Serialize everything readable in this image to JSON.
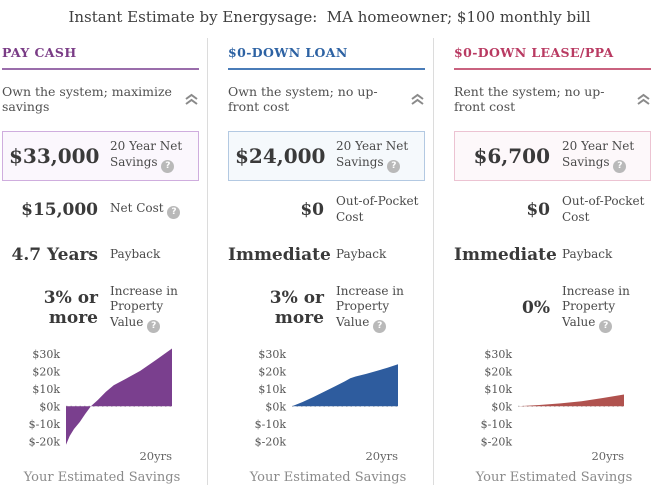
{
  "page_title": "Instant Estimate by Energysage:  MA homeowner; $100 monthly bill",
  "icons": {
    "help_glyph": "?",
    "chevron_meaning": "collapse-up"
  },
  "divider_color": "#dcdcdc",
  "columns": [
    {
      "header": "PAY CASH",
      "subtitle": "Own the system; maximize savings",
      "colors": {
        "accent": "#7a3c86",
        "underline": "#9a6dab",
        "box_border": "#cfadde",
        "box_bg": "#fbf7fd",
        "chart_fill": "#7a3f8e"
      },
      "highlight": {
        "value": "$33,000",
        "label": "20 Year Net Savings"
      },
      "metrics": [
        {
          "value": "$15,000",
          "label": "Net Cost"
        },
        {
          "value": "4.7 Years",
          "label": "Payback"
        },
        {
          "value": "3% or more",
          "label": "Increase in Property Value"
        }
      ],
      "chart_footer": "Your Estimated Savings"
    },
    {
      "header": "$0-DOWN LOAN",
      "subtitle": "Own the system; no up-front cost",
      "colors": {
        "accent": "#2d62a3",
        "underline": "#4a7cb8",
        "box_border": "#b3c9e2",
        "box_bg": "#f5f9fc",
        "chart_fill": "#2e5c9e"
      },
      "highlight": {
        "value": "$24,000",
        "label": "20 Year Net Savings"
      },
      "metrics": [
        {
          "value": "$0",
          "label": "Out-of-Pocket Cost"
        },
        {
          "value": "Immediate",
          "label": "Payback"
        },
        {
          "value": "3% or more",
          "label": "Increase in Property Value"
        }
      ],
      "chart_footer": "Your Estimated Savings"
    },
    {
      "header": "$0-DOWN LEASE/PPA",
      "subtitle": "Rent the system; no up-front cost",
      "colors": {
        "accent": "#b93a62",
        "underline": "#c9627f",
        "box_border": "#ecc3d2",
        "box_bg": "#fdf8fa",
        "chart_fill": "#b0524e"
      },
      "highlight": {
        "value": "$6,700",
        "label": "20 Year Net Savings"
      },
      "metrics": [
        {
          "value": "$0",
          "label": "Out-of-Pocket Cost"
        },
        {
          "value": "Immediate",
          "label": "Payback"
        },
        {
          "value": "0%",
          "label": "Increase in Property Value"
        }
      ],
      "chart_footer": "Your Estimated Savings"
    }
  ],
  "chart_data": [
    {
      "type": "area",
      "name": "pay-cash-cumulative-savings",
      "caption": "Your Estimated Savings",
      "x_label": "20yrs",
      "x_max_years": 20,
      "ylim_dollars": [
        -25000,
        35000
      ],
      "grid": false,
      "yticks": [
        [
          "$30k",
          30000
        ],
        [
          "$20k",
          20000
        ],
        [
          "$10k",
          10000
        ],
        [
          "$0k",
          0
        ],
        [
          "$-10k",
          -10000
        ],
        [
          "$-20k",
          -20000
        ]
      ],
      "points_year_dollars": [
        [
          0,
          -22000
        ],
        [
          0.7,
          -17000
        ],
        [
          1.5,
          -13000
        ],
        [
          2.6,
          -9000
        ],
        [
          3.6,
          -4500
        ],
        [
          4.7,
          0
        ],
        [
          6,
          3600
        ],
        [
          7.5,
          8200
        ],
        [
          9,
          12000
        ],
        [
          11,
          15200
        ],
        [
          14,
          20200
        ],
        [
          17,
          26500
        ],
        [
          20,
          33000
        ]
      ]
    },
    {
      "type": "area",
      "name": "loan-cumulative-savings",
      "caption": "Your Estimated Savings",
      "x_label": "20yrs",
      "x_max_years": 20,
      "ylim_dollars": [
        -25000,
        35000
      ],
      "grid": false,
      "yticks": [
        [
          "$30k",
          30000
        ],
        [
          "$20k",
          20000
        ],
        [
          "$10k",
          10000
        ],
        [
          "$0k",
          0
        ],
        [
          "$-10k",
          -10000
        ],
        [
          "$-20k",
          -20000
        ]
      ],
      "points_year_dollars": [
        [
          0,
          0
        ],
        [
          2,
          2400
        ],
        [
          4,
          5200
        ],
        [
          6,
          8200
        ],
        [
          8,
          11200
        ],
        [
          10,
          14300
        ],
        [
          11,
          16000
        ],
        [
          12,
          17000
        ],
        [
          14,
          18500
        ],
        [
          16,
          20200
        ],
        [
          18,
          22000
        ],
        [
          20,
          24000
        ]
      ]
    },
    {
      "type": "area",
      "name": "lease-ppa-cumulative-savings",
      "caption": "Your Estimated Savings",
      "x_label": "20yrs",
      "x_max_years": 20,
      "ylim_dollars": [
        -25000,
        35000
      ],
      "grid": false,
      "yticks": [
        [
          "$30k",
          30000
        ],
        [
          "$20k",
          20000
        ],
        [
          "$10k",
          10000
        ],
        [
          "$0k",
          0
        ],
        [
          "$-10k",
          -10000
        ],
        [
          "$-20k",
          -20000
        ]
      ],
      "points_year_dollars": [
        [
          0,
          0
        ],
        [
          4,
          700
        ],
        [
          8,
          1600
        ],
        [
          12,
          2900
        ],
        [
          16,
          4700
        ],
        [
          20,
          6700
        ]
      ]
    }
  ]
}
